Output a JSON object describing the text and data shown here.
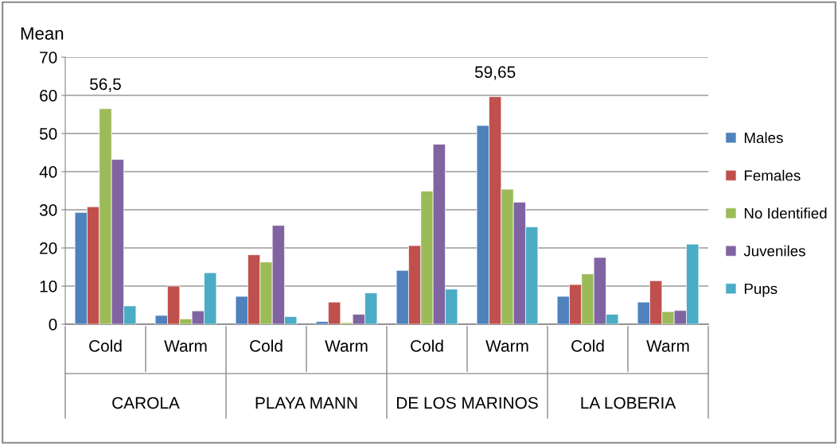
{
  "chart_data": {
    "type": "bar",
    "ylabel": "Mean",
    "categories": [
      "Cold",
      "Warm",
      "Cold",
      "Warm",
      "Cold",
      "Warm",
      "Cold",
      "Warm"
    ],
    "annotations": [
      "CAROLA",
      "PLAYA MANN",
      "DE LOS MARINOS",
      "LA LOBERIA"
    ],
    "series": [
      {
        "name": "Males",
        "color": "#4f81bd",
        "values": [
          29.3,
          2.3,
          7.3,
          0.7,
          14.1,
          52.1,
          7.3,
          5.8
        ]
      },
      {
        "name": "Females",
        "color": "#c0504d",
        "values": [
          30.8,
          10.0,
          18.2,
          5.8,
          20.6,
          59.65,
          10.4,
          11.4
        ],
        "value_labels": [
          null,
          null,
          null,
          null,
          null,
          "59,65",
          null,
          null
        ]
      },
      {
        "name": "No Identified",
        "color": "#9bbb59",
        "values": [
          56.5,
          1.4,
          16.3,
          0.4,
          34.9,
          35.4,
          13.2,
          3.3
        ],
        "value_labels": [
          "56,5",
          null,
          null,
          null,
          null,
          null,
          null,
          null
        ]
      },
      {
        "name": "Juveniles",
        "color": "#8064a2",
        "values": [
          43.2,
          3.5,
          25.9,
          2.6,
          47.2,
          32.0,
          17.5,
          3.6
        ]
      },
      {
        "name": "Pups",
        "color": "#4bacc6",
        "values": [
          4.8,
          13.5,
          2.0,
          8.2,
          9.2,
          25.5,
          2.6,
          21.0
        ]
      }
    ],
    "ylim": [
      0,
      70
    ],
    "yticks": [
      0,
      10,
      20,
      30,
      40,
      50,
      60,
      70
    ],
    "grid": "y",
    "legend": "right"
  }
}
